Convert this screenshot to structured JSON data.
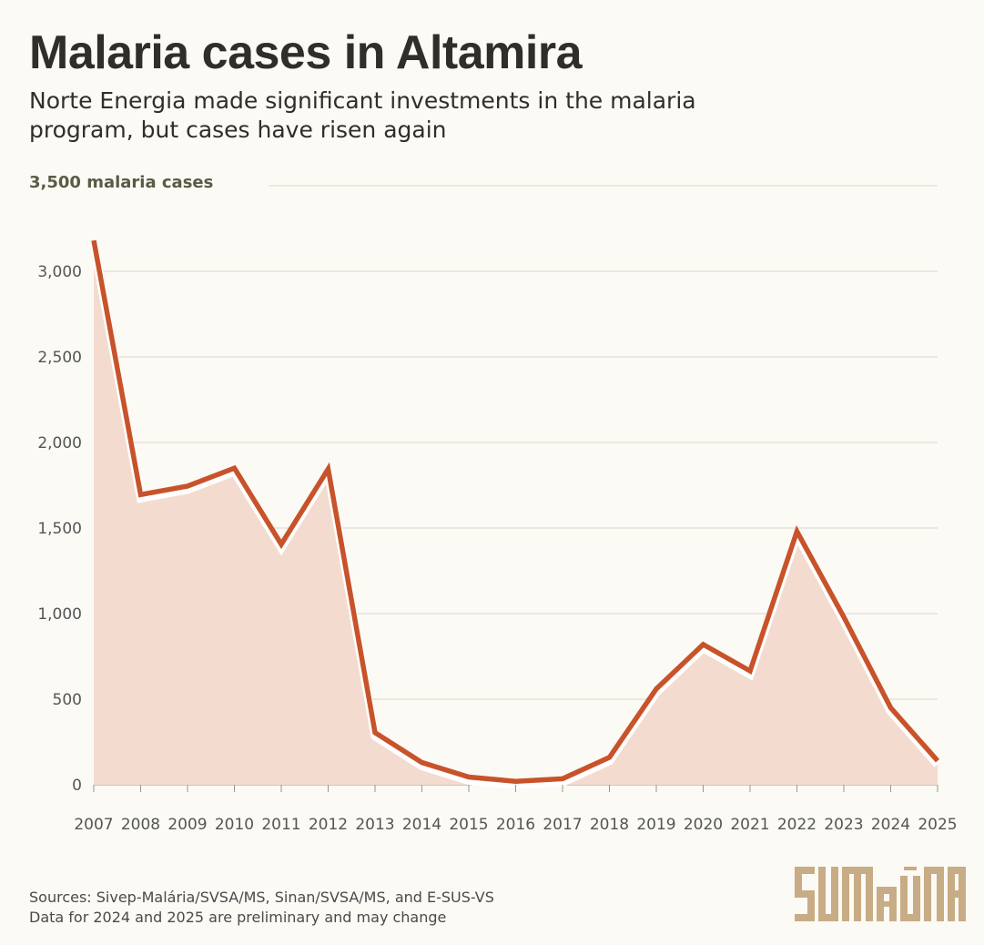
{
  "header": {
    "title": "Malaria cases in Altamira",
    "subtitle": "Norte Energia made significant investments in the malaria program, but cases have risen again"
  },
  "footer": {
    "sources": "Sources: Sivep-Malária/SVSA/MS, Sinan/SVSA/MS, and E-SUS-VS",
    "note": "Data for 2024 and 2025 are preliminary and may change"
  },
  "logo": {
    "text": "SUMAÚMA",
    "color": "#c8ac85"
  },
  "colors": {
    "line": "#c8532a",
    "area": "#f3dccf",
    "grid": "#d9d6cc",
    "background": "#fbfaf5"
  },
  "chart_data": {
    "type": "area",
    "title": "Malaria cases in Altamira",
    "ylabel_top": "3,500 malaria cases",
    "x": [
      "2007",
      "2008",
      "2009",
      "2010",
      "2011",
      "2012",
      "2013",
      "2014",
      "2015",
      "2016",
      "2017",
      "2018",
      "2019",
      "2020",
      "2021",
      "2022",
      "2023",
      "2024",
      "2025"
    ],
    "series": [
      {
        "values": [
          3180,
          1695,
          1745,
          1850,
          1405,
          1845,
          305,
          130,
          45,
          20,
          35,
          160,
          560,
          820,
          665,
          1480,
          980,
          450,
          140
        ]
      }
    ],
    "ylim": [
      0,
      3500
    ],
    "yticks": [
      0,
      500,
      1000,
      1500,
      2000,
      2500,
      3000,
      3500
    ],
    "ytick_labels": [
      "0",
      "500",
      "1,000",
      "1,500",
      "2,000",
      "2,500",
      "3,000",
      "3,500 malaria cases"
    ],
    "grid": true,
    "legend": "none"
  }
}
